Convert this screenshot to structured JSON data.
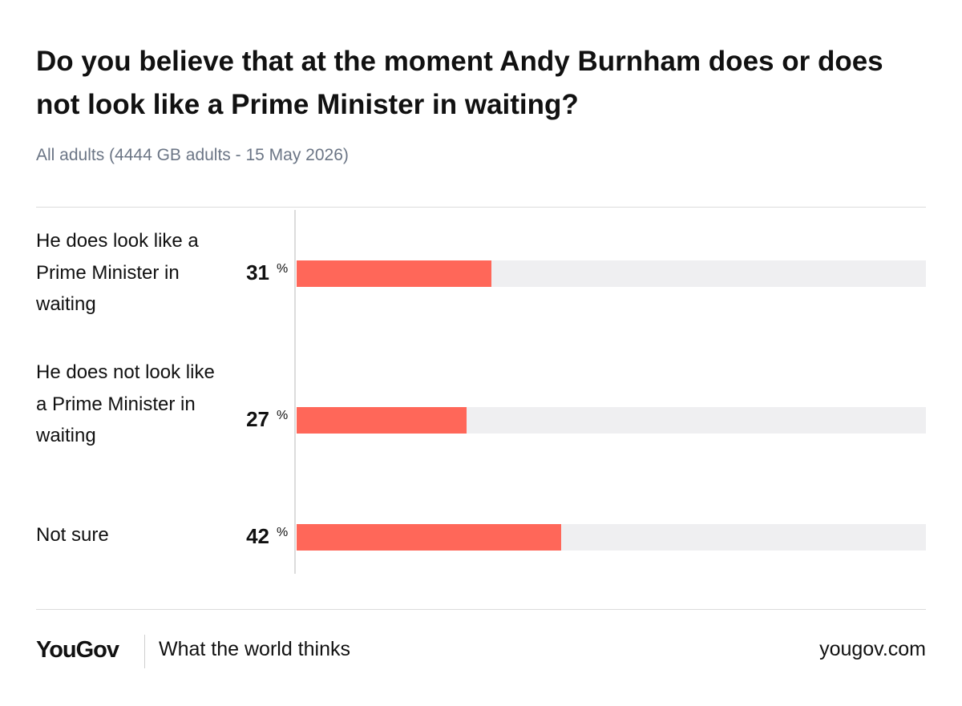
{
  "title": "Do you believe that at the moment Andy Burnham does or does not look like a Prime Minister in waiting?",
  "subtitle": "All adults (4444 GB adults - 15 May 2026)",
  "footer": {
    "logo": "YouGov",
    "tagline": "What the world thinks",
    "url": "yougov.com"
  },
  "chart_data": {
    "type": "bar",
    "orientation": "horizontal",
    "title": "Do you believe that at the moment Andy Burnham does or does not look like a Prime Minister in waiting?",
    "subtitle": "All adults (4444 GB adults - 15 May 2026)",
    "categories": [
      "He does look like a Prime Minister in waiting",
      "He does not look like a Prime Minister in waiting",
      "Not sure"
    ],
    "values": [
      31,
      27,
      42
    ],
    "unit": "%",
    "xlim": [
      0,
      100
    ],
    "grid": false,
    "legend": "none",
    "bar_color": "#ff6759",
    "track_color": "#efeff1"
  }
}
